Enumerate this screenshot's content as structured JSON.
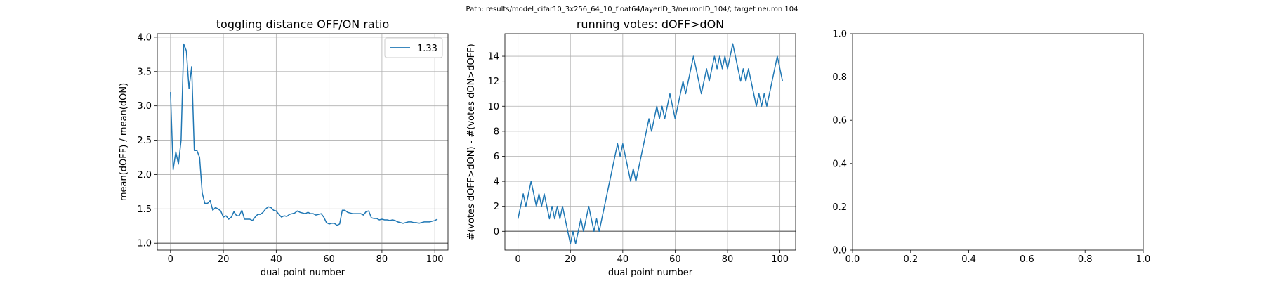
{
  "suptitle": "Path: results/model_cifar10_3x256_64_10_float64/layerID_3/neuronID_104/; target neuron 104",
  "chart_data": [
    {
      "type": "line",
      "title": "toggling distance OFF/ON ratio",
      "xlabel": "dual point number",
      "ylabel": "mean(dOFF) / mean(dON)",
      "xlim": [
        -5,
        105
      ],
      "ylim": [
        0.9,
        4.05
      ],
      "xticks": [
        0,
        20,
        40,
        60,
        80,
        100
      ],
      "yticks": [
        1.0,
        1.5,
        2.0,
        2.5,
        3.0,
        3.5,
        4.0
      ],
      "ytick_labels": [
        "1.0",
        "1.5",
        "2.0",
        "2.5",
        "3.0",
        "3.5",
        "4.0"
      ],
      "grid": true,
      "legend": {
        "position": "top-right",
        "entries": [
          "1.33"
        ]
      },
      "hline": 1.0,
      "series": [
        {
          "name": "1.33",
          "color": "#1f77b4",
          "x": [
            0,
            1,
            2,
            3,
            4,
            5,
            6,
            7,
            8,
            9,
            10,
            11,
            12,
            13,
            14,
            15,
            16,
            17,
            18,
            19,
            20,
            21,
            22,
            23,
            24,
            25,
            26,
            27,
            28,
            29,
            30,
            31,
            32,
            33,
            34,
            35,
            36,
            37,
            38,
            39,
            40,
            41,
            42,
            43,
            44,
            45,
            46,
            47,
            48,
            49,
            50,
            51,
            52,
            53,
            54,
            55,
            56,
            57,
            58,
            59,
            60,
            61,
            62,
            63,
            64,
            65,
            66,
            67,
            68,
            69,
            70,
            71,
            72,
            73,
            74,
            75,
            76,
            77,
            78,
            79,
            80,
            81,
            82,
            83,
            84,
            85,
            86,
            87,
            88,
            89,
            90,
            91,
            92,
            93,
            94,
            95,
            96,
            97,
            98,
            99,
            100,
            101
          ],
          "y": [
            3.2,
            2.07,
            2.33,
            2.15,
            2.5,
            3.9,
            3.8,
            3.25,
            3.57,
            2.35,
            2.35,
            2.25,
            1.73,
            1.58,
            1.58,
            1.62,
            1.48,
            1.52,
            1.5,
            1.47,
            1.38,
            1.4,
            1.35,
            1.38,
            1.46,
            1.4,
            1.4,
            1.48,
            1.35,
            1.35,
            1.35,
            1.33,
            1.38,
            1.42,
            1.42,
            1.45,
            1.5,
            1.53,
            1.52,
            1.48,
            1.47,
            1.42,
            1.38,
            1.4,
            1.39,
            1.42,
            1.43,
            1.44,
            1.47,
            1.45,
            1.44,
            1.43,
            1.45,
            1.43,
            1.43,
            1.41,
            1.42,
            1.43,
            1.38,
            1.3,
            1.28,
            1.29,
            1.29,
            1.26,
            1.28,
            1.48,
            1.48,
            1.45,
            1.44,
            1.43,
            1.43,
            1.43,
            1.43,
            1.41,
            1.46,
            1.47,
            1.37,
            1.36,
            1.36,
            1.34,
            1.35,
            1.34,
            1.34,
            1.33,
            1.34,
            1.33,
            1.31,
            1.3,
            1.29,
            1.3,
            1.31,
            1.31,
            1.3,
            1.3,
            1.29,
            1.3,
            1.31,
            1.31,
            1.31,
            1.32,
            1.33,
            1.35
          ]
        }
      ]
    },
    {
      "type": "line",
      "title": "running votes: dOFF>dON",
      "xlabel": "dual point number",
      "ylabel": "#(votes dOFF>dON) - #(votes dON>dOFF)",
      "xlim": [
        -5,
        106
      ],
      "ylim": [
        -1.5,
        15.8
      ],
      "xticks": [
        0,
        20,
        40,
        60,
        80,
        100
      ],
      "yticks": [
        0,
        2,
        4,
        6,
        8,
        10,
        12,
        14
      ],
      "ytick_labels": [
        "0",
        "2",
        "4",
        "6",
        "8",
        "10",
        "12",
        "14"
      ],
      "grid": true,
      "hline": 0,
      "series": [
        {
          "color": "#1f77b4",
          "x": [
            0,
            1,
            2,
            3,
            4,
            5,
            6,
            7,
            8,
            9,
            10,
            11,
            12,
            13,
            14,
            15,
            16,
            17,
            18,
            19,
            20,
            21,
            22,
            23,
            24,
            25,
            26,
            27,
            28,
            29,
            30,
            31,
            32,
            33,
            34,
            35,
            36,
            37,
            38,
            39,
            40,
            41,
            42,
            43,
            44,
            45,
            46,
            47,
            48,
            49,
            50,
            51,
            52,
            53,
            54,
            55,
            56,
            57,
            58,
            59,
            60,
            61,
            62,
            63,
            64,
            65,
            66,
            67,
            68,
            69,
            70,
            71,
            72,
            73,
            74,
            75,
            76,
            77,
            78,
            79,
            80,
            81,
            82,
            83,
            84,
            85,
            86,
            87,
            88,
            89,
            90,
            91,
            92,
            93,
            94,
            95,
            96,
            97,
            98,
            99,
            100,
            101
          ],
          "y": [
            1,
            2,
            3,
            2,
            3,
            4,
            3,
            2,
            3,
            2,
            3,
            2,
            1,
            2,
            1,
            2,
            1,
            2,
            1,
            0,
            -1,
            0,
            -1,
            0,
            1,
            0,
            1,
            2,
            1,
            0,
            1,
            0,
            1,
            2,
            3,
            4,
            5,
            6,
            7,
            6,
            7,
            6,
            5,
            4,
            5,
            4,
            5,
            6,
            7,
            8,
            9,
            8,
            9,
            10,
            9,
            10,
            9,
            10,
            11,
            10,
            9,
            10,
            11,
            12,
            11,
            12,
            13,
            14,
            13,
            12,
            11,
            12,
            13,
            12,
            13,
            14,
            13,
            14,
            13,
            14,
            13,
            14,
            15,
            14,
            13,
            12,
            13,
            12,
            13,
            12,
            11,
            10,
            11,
            10,
            11,
            10,
            11,
            12,
            13,
            14,
            13,
            12
          ]
        }
      ]
    },
    {
      "type": "line",
      "title": "",
      "xlabel": "",
      "ylabel": "",
      "xlim": [
        0,
        1
      ],
      "ylim": [
        0,
        1
      ],
      "xticks": [
        0,
        0.2,
        0.4,
        0.6,
        0.8,
        1.0
      ],
      "xtick_labels": [
        "0.0",
        "0.2",
        "0.4",
        "0.6",
        "0.8",
        "1.0"
      ],
      "yticks": [
        0,
        0.2,
        0.4,
        0.6,
        0.8,
        1.0
      ],
      "ytick_labels": [
        "0.0",
        "0.2",
        "0.4",
        "0.6",
        "0.8",
        "1.0"
      ],
      "grid": false,
      "series": []
    }
  ]
}
